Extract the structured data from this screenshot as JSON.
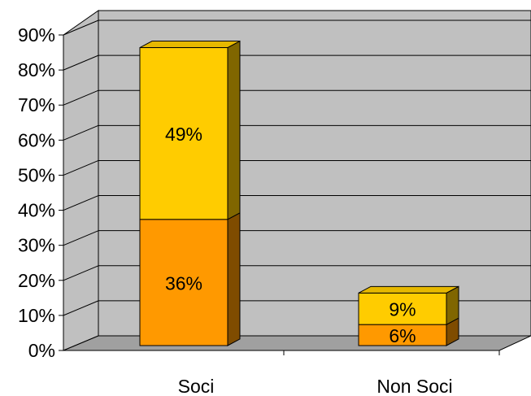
{
  "chart_data": {
    "type": "bar",
    "stacked": true,
    "three_d": true,
    "categories": [
      "Soci",
      "Non Soci"
    ],
    "series": [
      {
        "values": [
          36,
          6
        ],
        "labels": [
          "36%",
          "6%"
        ],
        "color": "#FF9900",
        "side_color": "#7F4C00",
        "top_color": "#CC7A00"
      },
      {
        "values": [
          49,
          9
        ],
        "labels": [
          "49%",
          "9%"
        ],
        "color": "#FFCC00",
        "side_color": "#806600",
        "top_color": "#E6B800"
      }
    ],
    "yticks": [
      "0%",
      "10%",
      "20%",
      "30%",
      "40%",
      "50%",
      "60%",
      "70%",
      "80%",
      "90%"
    ],
    "ylim": [
      0,
      90
    ],
    "grid": true,
    "legend": "none",
    "colors": {
      "wall": "#C0C0C0",
      "floor": "#A0A0A0",
      "gridline": "#000000"
    }
  }
}
